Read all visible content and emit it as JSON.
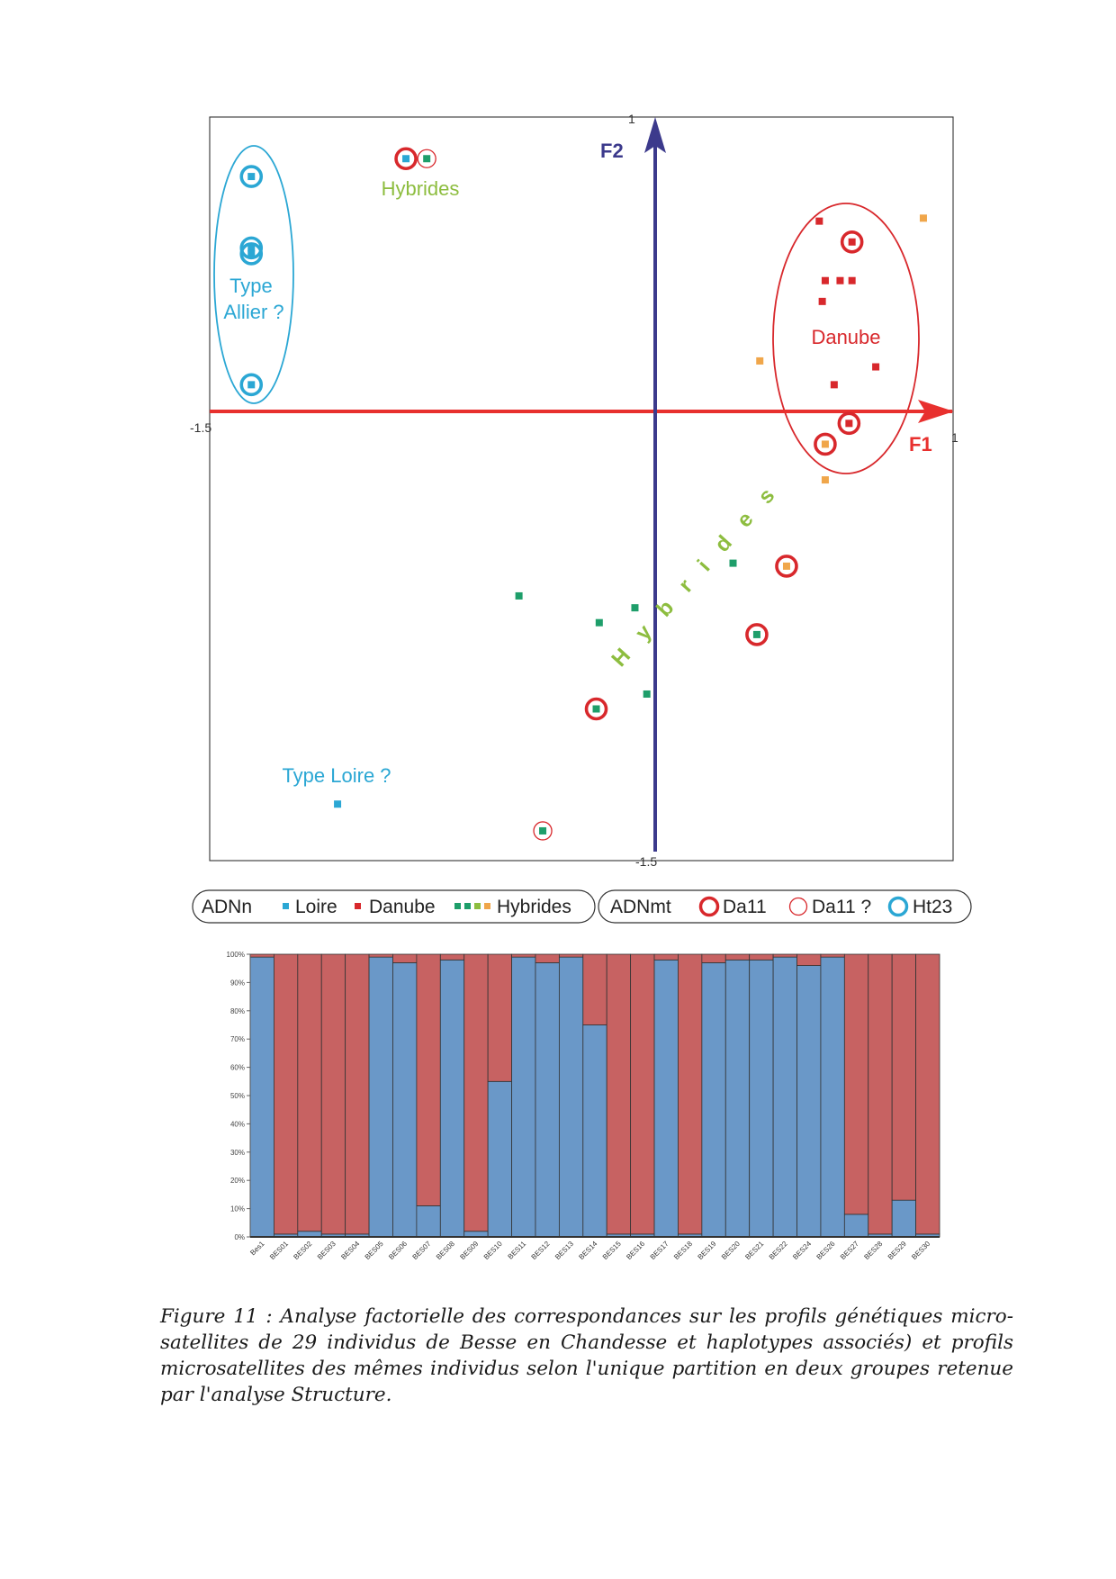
{
  "chart_data": [
    {
      "type": "scatter",
      "xlim": [
        -1.5,
        1
      ],
      "ylim": [
        -1.5,
        1
      ],
      "axes": {
        "x_label": "F1",
        "y_label": "F2",
        "x_min_label": "-1.5",
        "x_max_label": "1",
        "y_min_label": "-1.5",
        "y_max_label": "1"
      },
      "groups": [
        {
          "label": "Type\nAllier ?",
          "color": "#2ba7d4"
        },
        {
          "label": "Danube",
          "color": "#d8282c"
        },
        {
          "label": "Hybrides",
          "color": "#8dbd3f"
        },
        {
          "label": "Type Loire ?",
          "color": "#2ba7d4"
        }
      ],
      "diagonal_label": "Hybrides",
      "colors": {
        "loire": "#2ba7d4",
        "danube": "#d8282c",
        "hybrid_green": "#1e9e6a",
        "hybrid_orange": "#f0a64a",
        "hybrid_label": "#8dbd3f",
        "f1_axis": "#e8302e",
        "f2_axis": "#3c3a8c"
      },
      "points": [
        {
          "x": -1.36,
          "y": 0.8,
          "nuc": "loire",
          "mt": "ht23"
        },
        {
          "x": -1.36,
          "y": 0.56,
          "nuc": "loire",
          "mt": "ht23"
        },
        {
          "x": -1.36,
          "y": 0.54,
          "nuc": "loire",
          "mt": "ht23"
        },
        {
          "x": -1.36,
          "y": 0.1,
          "nuc": "loire",
          "mt": "ht23"
        },
        {
          "x": -0.84,
          "y": 0.86,
          "nuc": "loire",
          "mt": "da11"
        },
        {
          "x": -0.77,
          "y": 0.86,
          "nuc": "hybrid_green",
          "mt": "da11q"
        },
        {
          "x": 0.55,
          "y": 0.65,
          "nuc": "danube",
          "mt": "none"
        },
        {
          "x": 0.66,
          "y": 0.58,
          "nuc": "danube",
          "mt": "da11"
        },
        {
          "x": 0.9,
          "y": 0.66,
          "nuc": "hybrid_orange",
          "mt": "none"
        },
        {
          "x": 0.57,
          "y": 0.45,
          "nuc": "danube",
          "mt": "none"
        },
        {
          "x": 0.62,
          "y": 0.45,
          "nuc": "danube",
          "mt": "none"
        },
        {
          "x": 0.66,
          "y": 0.45,
          "nuc": "danube",
          "mt": "none"
        },
        {
          "x": 0.56,
          "y": 0.38,
          "nuc": "danube",
          "mt": "none"
        },
        {
          "x": 0.35,
          "y": 0.18,
          "nuc": "hybrid_orange",
          "mt": "none"
        },
        {
          "x": 0.74,
          "y": 0.16,
          "nuc": "danube",
          "mt": "none"
        },
        {
          "x": 0.6,
          "y": 0.1,
          "nuc": "danube",
          "mt": "none"
        },
        {
          "x": 0.65,
          "y": -0.03,
          "nuc": "danube",
          "mt": "da11"
        },
        {
          "x": 0.57,
          "y": -0.1,
          "nuc": "hybrid_orange",
          "mt": "da11"
        },
        {
          "x": 0.57,
          "y": -0.22,
          "nuc": "hybrid_orange",
          "mt": "none"
        },
        {
          "x": 0.26,
          "y": -0.5,
          "nuc": "hybrid_green",
          "mt": "none"
        },
        {
          "x": 0.44,
          "y": -0.51,
          "nuc": "hybrid_orange",
          "mt": "da11"
        },
        {
          "x": -0.46,
          "y": -0.61,
          "nuc": "hybrid_green",
          "mt": "none"
        },
        {
          "x": -0.07,
          "y": -0.65,
          "nuc": "hybrid_green",
          "mt": "none"
        },
        {
          "x": -0.19,
          "y": -0.7,
          "nuc": "hybrid_green",
          "mt": "none"
        },
        {
          "x": 0.34,
          "y": -0.74,
          "nuc": "hybrid_green",
          "mt": "da11"
        },
        {
          "x": -0.03,
          "y": -0.94,
          "nuc": "hybrid_green",
          "mt": "none"
        },
        {
          "x": -0.2,
          "y": -0.99,
          "nuc": "hybrid_green",
          "mt": "da11"
        },
        {
          "x": -1.07,
          "y": -1.31,
          "nuc": "loire",
          "mt": "none"
        },
        {
          "x": -0.38,
          "y": -1.4,
          "nuc": "hybrid_green",
          "mt": "da11q"
        }
      ]
    },
    {
      "type": "bar",
      "stacked": true,
      "ylim": [
        0,
        100
      ],
      "y_ticks": [
        "0%",
        "10%",
        "20%",
        "30%",
        "40%",
        "50%",
        "60%",
        "70%",
        "80%",
        "90%",
        "100%"
      ],
      "categories": [
        "Bes1",
        "BES01",
        "BES02",
        "BES03",
        "BES04",
        "BES05",
        "BES06",
        "BES07",
        "BES08",
        "BES09",
        "BES10",
        "BES11",
        "BES12",
        "BES13",
        "BES14",
        "BES15",
        "BES16",
        "BES17",
        "BES18",
        "BES19",
        "BES20",
        "BES21",
        "BES22",
        "BES24",
        "BES26",
        "BES27",
        "BES28",
        "BES29",
        "BES30"
      ],
      "series": [
        {
          "color": "#6a98c8",
          "values": [
            99,
            1,
            2,
            1,
            1,
            99,
            97,
            11,
            98,
            2,
            55,
            99,
            97,
            99,
            75,
            1,
            1,
            98,
            1,
            97,
            98,
            98,
            99,
            96,
            99,
            8,
            1,
            13,
            1
          ]
        },
        {
          "color": "#c76262",
          "values": [
            1,
            99,
            98,
            99,
            99,
            1,
            3,
            89,
            2,
            98,
            45,
            1,
            3,
            1,
            25,
            99,
            99,
            2,
            99,
            3,
            2,
            2,
            1,
            4,
            1,
            92,
            99,
            87,
            99
          ]
        }
      ]
    }
  ],
  "legend": {
    "nuclear": {
      "title": "ADNn",
      "loire": "Loire",
      "danube": "Danube",
      "hybrids": "Hybrides"
    },
    "mito": {
      "title": "ADNmt",
      "da11": "Da11",
      "da11q": "Da11 ?",
      "ht23": "Ht23"
    }
  },
  "caption": "Figure 11 : Analyse factorielle des correspondances sur les profils génétiques micro-satellites de 29 individus de Besse en Chandesse et haplotypes associés) et profils microsatellites des mêmes individus selon l'unique partition en deux groupes retenue par l'analyse Structure."
}
